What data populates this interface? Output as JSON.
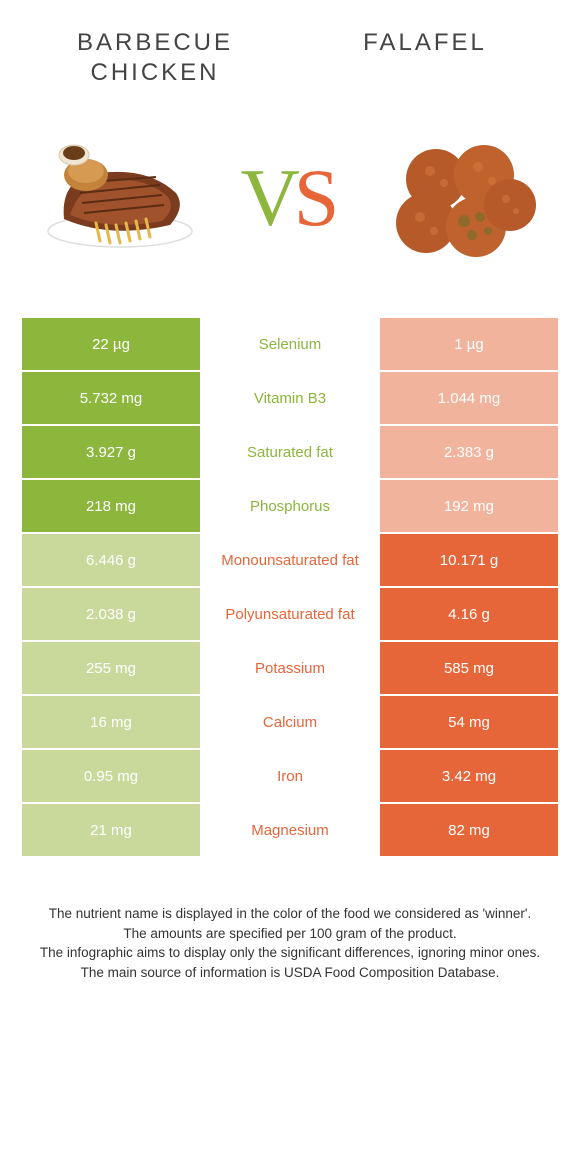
{
  "colors": {
    "left": "#8cb63c",
    "right": "#e6663a",
    "left_dim": "#c8d99b",
    "right_dim": "#f2b39d",
    "background": "#ffffff",
    "text": "#333333",
    "header_text": "#444444"
  },
  "header": {
    "left_title": "Barbecue chicken",
    "right_title": "Falafel",
    "vs_v": "V",
    "vs_s": "S"
  },
  "table": {
    "rows": [
      {
        "nutrient": "Selenium",
        "left": "22 µg",
        "right": "1 µg",
        "winner": "left"
      },
      {
        "nutrient": "Vitamin B3",
        "left": "5.732 mg",
        "right": "1.044 mg",
        "winner": "left"
      },
      {
        "nutrient": "Saturated fat",
        "left": "3.927 g",
        "right": "2.383 g",
        "winner": "left"
      },
      {
        "nutrient": "Phosphorus",
        "left": "218 mg",
        "right": "192 mg",
        "winner": "left"
      },
      {
        "nutrient": "Monounsaturated fat",
        "left": "6.446 g",
        "right": "10.171 g",
        "winner": "right"
      },
      {
        "nutrient": "Polyunsaturated fat",
        "left": "2.038 g",
        "right": "4.16 g",
        "winner": "right"
      },
      {
        "nutrient": "Potassium",
        "left": "255 mg",
        "right": "585 mg",
        "winner": "right"
      },
      {
        "nutrient": "Calcium",
        "left": "16 mg",
        "right": "54 mg",
        "winner": "right"
      },
      {
        "nutrient": "Iron",
        "left": "0.95 mg",
        "right": "3.42 mg",
        "winner": "right"
      },
      {
        "nutrient": "Magnesium",
        "left": "21 mg",
        "right": "82 mg",
        "winner": "right"
      }
    ]
  },
  "footer": {
    "line1": "The nutrient name is displayed in the color of the food we considered as 'winner'.",
    "line2": "The amounts are specified per 100 gram of the product.",
    "line3": "The infographic aims to display only the significant differences, ignoring minor ones.",
    "line4": "The main source of information is USDA Food Composition Database."
  }
}
